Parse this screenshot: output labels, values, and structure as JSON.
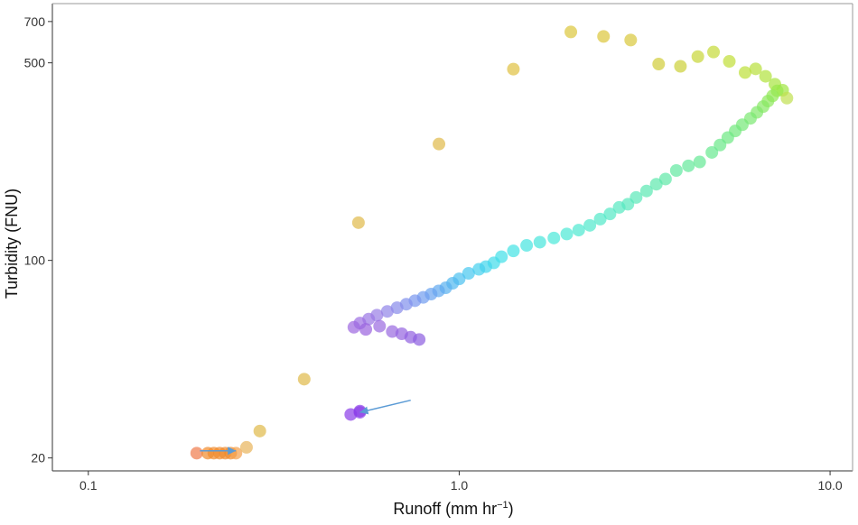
{
  "chart_data": {
    "type": "scatter",
    "xlabel": "Runoff (mm hr",
    "xlabel_sup": "−1",
    "xlabel_close": ")",
    "ylabel": "Turbidity (FNU)",
    "xscale": "log",
    "yscale": "log",
    "xlim": [
      0.08,
      11.5
    ],
    "ylim": [
      18,
      810
    ],
    "x_ticks": [
      0.1,
      1.0,
      10.0
    ],
    "x_tick_labels": [
      "0.1",
      "1.0",
      "10.0"
    ],
    "y_ticks": [
      20,
      100,
      500,
      700
    ],
    "y_tick_labels": [
      "20",
      "100",
      "500",
      "700"
    ],
    "grid": false,
    "colors": {
      "rising_limb": "#e0b948",
      "arrow": "#5b9bd5",
      "axis": "#333333"
    },
    "color_note": "falling limb colored by time: green → cyan → blue → purple; base flow orange",
    "arrows": [
      {
        "from": [
          0.2,
          21.2
        ],
        "to": [
          0.25,
          21.2
        ],
        "meaning": "rising"
      },
      {
        "from": [
          0.74,
          32
        ],
        "to": [
          0.54,
          29
        ],
        "meaning": "falling"
      }
    ],
    "points": [
      {
        "x": 0.196,
        "y": 20.8,
        "c": "#ef7a4a"
      },
      {
        "x": 0.21,
        "y": 20.8,
        "c": "#f08a2c"
      },
      {
        "x": 0.218,
        "y": 20.8,
        "c": "#f08a2c"
      },
      {
        "x": 0.226,
        "y": 20.8,
        "c": "#f08a2c"
      },
      {
        "x": 0.234,
        "y": 20.8,
        "c": "#f08a2c"
      },
      {
        "x": 0.242,
        "y": 20.8,
        "c": "#f08a2c"
      },
      {
        "x": 0.25,
        "y": 20.8,
        "c": "#f3a04a"
      },
      {
        "x": 0.267,
        "y": 21.8,
        "c": "#e8b45a"
      },
      {
        "x": 0.29,
        "y": 24.9,
        "c": "#e0b948"
      },
      {
        "x": 0.382,
        "y": 38,
        "c": "#e0b948"
      },
      {
        "x": 0.535,
        "y": 136,
        "c": "#e0b948"
      },
      {
        "x": 0.882,
        "y": 258,
        "c": "#e0b948"
      },
      {
        "x": 1.4,
        "y": 475,
        "c": "#e0c040"
      },
      {
        "x": 2.0,
        "y": 643,
        "c": "#dcc63a"
      },
      {
        "x": 2.45,
        "y": 620,
        "c": "#dcc63a"
      },
      {
        "x": 2.9,
        "y": 602,
        "c": "#d8c83a"
      },
      {
        "x": 3.45,
        "y": 495,
        "c": "#d0cc38"
      },
      {
        "x": 3.95,
        "y": 486,
        "c": "#ccd036"
      },
      {
        "x": 4.4,
        "y": 526,
        "c": "#c8d636"
      },
      {
        "x": 4.85,
        "y": 546,
        "c": "#c4da36"
      },
      {
        "x": 5.35,
        "y": 506,
        "c": "#c0de36"
      },
      {
        "x": 5.9,
        "y": 462,
        "c": "#bce038"
      },
      {
        "x": 6.3,
        "y": 476,
        "c": "#b8e03a"
      },
      {
        "x": 6.7,
        "y": 448,
        "c": "#b0e23c"
      },
      {
        "x": 7.1,
        "y": 420,
        "c": "#a8e43e"
      },
      {
        "x": 7.45,
        "y": 400,
        "c": "#a0e640"
      },
      {
        "x": 7.65,
        "y": 375,
        "c": "#c0e050"
      },
      {
        "x": 7.2,
        "y": 398,
        "c": "#98e84a"
      },
      {
        "x": 7.0,
        "y": 382,
        "c": "#92e852"
      },
      {
        "x": 6.8,
        "y": 366,
        "c": "#8ce85a"
      },
      {
        "x": 6.6,
        "y": 350,
        "c": "#86e862"
      },
      {
        "x": 6.35,
        "y": 334,
        "c": "#80e86a"
      },
      {
        "x": 6.1,
        "y": 318,
        "c": "#7ae870"
      },
      {
        "x": 5.8,
        "y": 302,
        "c": "#74e876"
      },
      {
        "x": 5.55,
        "y": 287,
        "c": "#70e87c"
      },
      {
        "x": 5.3,
        "y": 272,
        "c": "#6ce882"
      },
      {
        "x": 5.05,
        "y": 256,
        "c": "#68e888"
      },
      {
        "x": 4.8,
        "y": 241,
        "c": "#66e88e"
      },
      {
        "x": 4.45,
        "y": 223,
        "c": "#64e894"
      },
      {
        "x": 4.15,
        "y": 216,
        "c": "#62e89a"
      },
      {
        "x": 3.85,
        "y": 208,
        "c": "#60e8a0"
      },
      {
        "x": 3.6,
        "y": 194,
        "c": "#5ee8a6"
      },
      {
        "x": 3.4,
        "y": 186,
        "c": "#5ce8ac"
      },
      {
        "x": 3.2,
        "y": 176,
        "c": "#5ae8b2"
      },
      {
        "x": 3.0,
        "y": 167,
        "c": "#58e8b8"
      },
      {
        "x": 2.85,
        "y": 158,
        "c": "#56e8bc"
      },
      {
        "x": 2.7,
        "y": 154,
        "c": "#54e8c0"
      },
      {
        "x": 2.55,
        "y": 146,
        "c": "#52e8c4"
      },
      {
        "x": 2.4,
        "y": 140,
        "c": "#50e8c8"
      },
      {
        "x": 2.25,
        "y": 133,
        "c": "#4ee8cc"
      },
      {
        "x": 2.1,
        "y": 128,
        "c": "#4ce8d0"
      },
      {
        "x": 1.95,
        "y": 124,
        "c": "#4ae8d4"
      },
      {
        "x": 1.8,
        "y": 120,
        "c": "#48e8d8"
      },
      {
        "x": 1.65,
        "y": 116,
        "c": "#46e6dc"
      },
      {
        "x": 1.52,
        "y": 113,
        "c": "#44e4e0"
      },
      {
        "x": 1.4,
        "y": 108,
        "c": "#42e2e4"
      },
      {
        "x": 1.3,
        "y": 103,
        "c": "#40e0e8"
      },
      {
        "x": 1.24,
        "y": 98,
        "c": "#40dcea"
      },
      {
        "x": 1.18,
        "y": 95,
        "c": "#42d6ec"
      },
      {
        "x": 1.13,
        "y": 93,
        "c": "#44d0ee"
      },
      {
        "x": 1.06,
        "y": 90,
        "c": "#46c8f0"
      },
      {
        "x": 1.0,
        "y": 86,
        "c": "#4ac0f0"
      },
      {
        "x": 0.96,
        "y": 83,
        "c": "#50b8f0"
      },
      {
        "x": 0.92,
        "y": 80,
        "c": "#58b0f0"
      },
      {
        "x": 0.88,
        "y": 78,
        "c": "#60a8f0"
      },
      {
        "x": 0.84,
        "y": 76,
        "c": "#68a2f0"
      },
      {
        "x": 0.8,
        "y": 74,
        "c": "#709cf0"
      },
      {
        "x": 0.76,
        "y": 72,
        "c": "#7896ee"
      },
      {
        "x": 0.72,
        "y": 70,
        "c": "#8090ec"
      },
      {
        "x": 0.68,
        "y": 68,
        "c": "#888aea"
      },
      {
        "x": 0.64,
        "y": 66,
        "c": "#9084e8"
      },
      {
        "x": 0.6,
        "y": 64,
        "c": "#987ee6"
      },
      {
        "x": 0.57,
        "y": 62,
        "c": "#9a76e4"
      },
      {
        "x": 0.54,
        "y": 60,
        "c": "#9c6ee2"
      },
      {
        "x": 0.52,
        "y": 58,
        "c": "#9c66e0"
      },
      {
        "x": 0.56,
        "y": 57,
        "c": "#9a62de"
      },
      {
        "x": 0.61,
        "y": 58.5,
        "c": "#9a6ae0"
      },
      {
        "x": 0.66,
        "y": 56,
        "c": "#9868e0"
      },
      {
        "x": 0.7,
        "y": 55,
        "c": "#9464e0"
      },
      {
        "x": 0.74,
        "y": 53.5,
        "c": "#9060e0"
      },
      {
        "x": 0.78,
        "y": 52.5,
        "c": "#8c5ce0"
      },
      {
        "x": 0.54,
        "y": 29,
        "c": "#9050e8"
      },
      {
        "x": 0.51,
        "y": 28.5,
        "c": "#8a3ce8"
      },
      {
        "x": 0.54,
        "y": 29.3,
        "c": "#8a3ce8"
      }
    ]
  }
}
